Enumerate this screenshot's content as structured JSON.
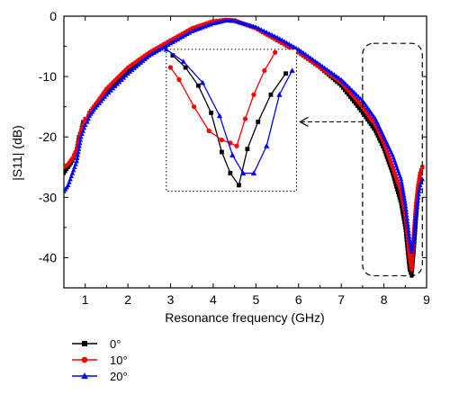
{
  "chart_data": {
    "type": "line",
    "xlabel": "Resonance frequency (GHz)",
    "ylabel": "|S11| (dB)",
    "xlim": [
      0.5,
      9.0
    ],
    "ylim": [
      -45,
      0
    ],
    "xticks": [
      "1",
      "2",
      "3",
      "4",
      "5",
      "6",
      "7",
      "8",
      "9"
    ],
    "yticks": [
      "0",
      "-10",
      "-20",
      "-30",
      "-40"
    ],
    "legend_position": "bottom-left",
    "grid": false,
    "series": [
      {
        "name": "0°",
        "color": "#000000",
        "marker": "square",
        "x": [
          0.5,
          0.6,
          0.7,
          0.8,
          0.85,
          0.9,
          0.95,
          1.0,
          1.05,
          1.1,
          1.2,
          1.5,
          2.0,
          2.5,
          3.0,
          3.5,
          4.0,
          4.3,
          4.5,
          5.0,
          5.5,
          6.0,
          6.5,
          7.0,
          7.5,
          7.8,
          8.0,
          8.2,
          8.4,
          8.5,
          8.55,
          8.6,
          8.65,
          8.7,
          8.75,
          8.8,
          8.85,
          8.9
        ],
        "y": [
          -26,
          -25,
          -24,
          -22,
          -20,
          -19,
          -17.5,
          -17,
          -17,
          -16,
          -15,
          -12.5,
          -9,
          -6.5,
          -4,
          -2.5,
          -1,
          -0.6,
          -0.7,
          -2,
          -4,
          -6,
          -8.5,
          -11.5,
          -16,
          -19,
          -22,
          -26,
          -31,
          -35,
          -38.5,
          -42,
          -43,
          -39,
          -34,
          -29,
          -26,
          -25
        ]
      },
      {
        "name": "10°",
        "color": "#ff0000",
        "marker": "circle",
        "x": [
          0.5,
          0.6,
          0.7,
          0.8,
          0.85,
          0.9,
          0.95,
          1.0,
          1.05,
          1.1,
          1.2,
          1.5,
          2.0,
          2.5,
          3.0,
          3.5,
          4.0,
          4.3,
          4.5,
          5.0,
          5.5,
          6.0,
          6.5,
          7.0,
          7.5,
          7.8,
          8.0,
          8.2,
          8.4,
          8.5,
          8.55,
          8.6,
          8.65,
          8.7,
          8.75,
          8.8,
          8.85,
          8.9
        ],
        "y": [
          -25,
          -24.5,
          -23.5,
          -22,
          -20.5,
          -19,
          -18,
          -17,
          -17,
          -16,
          -15,
          -12,
          -8.5,
          -6,
          -4,
          -2,
          -0.8,
          -0.6,
          -0.8,
          -2,
          -4,
          -6,
          -8.5,
          -11,
          -15,
          -18,
          -21,
          -25,
          -29,
          -33,
          -36,
          -40,
          -42,
          -36,
          -31,
          -28,
          -26,
          -25
        ]
      },
      {
        "name": "20°",
        "color": "#0000ff",
        "marker": "triangle",
        "x": [
          0.5,
          0.6,
          0.7,
          0.8,
          0.85,
          0.9,
          0.95,
          1.0,
          1.05,
          1.1,
          1.2,
          1.5,
          2.0,
          2.5,
          3.0,
          3.5,
          4.0,
          4.3,
          4.5,
          5.0,
          5.5,
          6.0,
          6.5,
          7.0,
          7.5,
          7.8,
          8.0,
          8.2,
          8.4,
          8.5,
          8.55,
          8.6,
          8.65,
          8.7,
          8.75,
          8.8,
          8.85,
          8.9
        ],
        "y": [
          -29,
          -28,
          -26,
          -24,
          -22,
          -20,
          -19,
          -18,
          -17.5,
          -16.5,
          -15.5,
          -13,
          -9.5,
          -6.5,
          -4.5,
          -2.5,
          -1.2,
          -0.7,
          -0.8,
          -1.8,
          -3.5,
          -5.5,
          -8,
          -10.5,
          -14,
          -17,
          -20,
          -23,
          -27,
          -31,
          -34,
          -37,
          -39,
          -37,
          -33,
          -30,
          -28,
          -27
        ]
      }
    ],
    "inset": {
      "source_box": {
        "x": [
          7.5,
          8.9
        ],
        "y": [
          -43,
          -4.5
        ]
      },
      "box": {
        "x": [
          2.9,
          5.95
        ],
        "y": [
          -29,
          -5.5
        ]
      },
      "series": [
        {
          "name": "0°",
          "x": [
            3.05,
            3.35,
            3.65,
            3.95,
            4.2,
            4.4,
            4.6,
            4.8,
            5.05,
            5.35,
            5.7
          ],
          "y": [
            -6.5,
            -8.5,
            -11.5,
            -16,
            -22.5,
            -26,
            -28,
            -22,
            -17.5,
            -13,
            -9.5
          ]
        },
        {
          "name": "10°",
          "x": [
            3.0,
            3.2,
            3.55,
            3.9,
            4.2,
            4.4,
            4.55,
            4.75,
            4.95,
            5.2,
            5.45
          ],
          "y": [
            -8.5,
            -10.5,
            -15,
            -19,
            -20.5,
            -21,
            -21.5,
            -17,
            -13,
            -9,
            -6
          ]
        },
        {
          "name": "20°",
          "x": [
            2.9,
            3.3,
            3.75,
            4.15,
            4.45,
            4.7,
            4.95,
            5.25,
            5.55,
            5.85
          ],
          "y": [
            -5.5,
            -7.5,
            -11,
            -16.5,
            -23,
            -26,
            -26,
            -21.5,
            -13,
            -9
          ]
        }
      ]
    }
  }
}
